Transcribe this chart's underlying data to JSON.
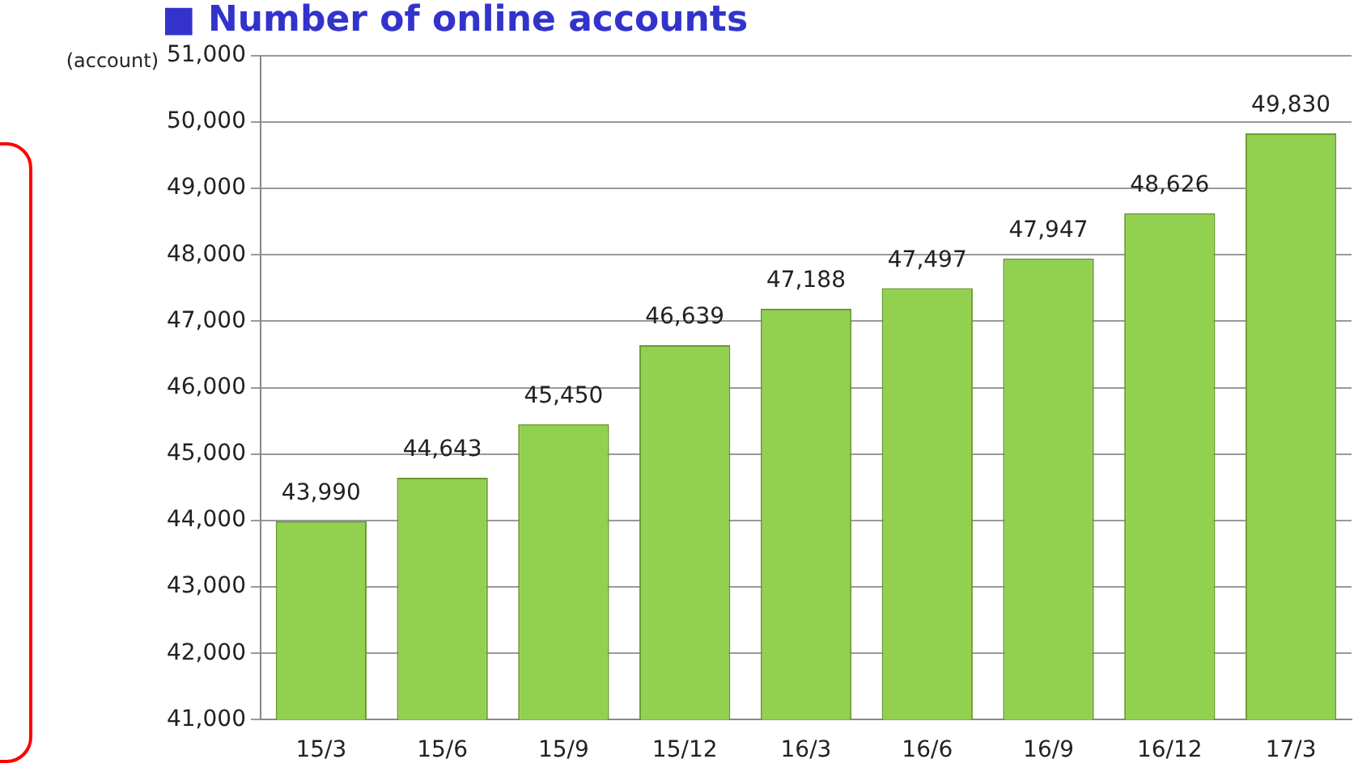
{
  "chart_data": {
    "type": "bar",
    "title": "■ Number of online accounts",
    "ylabel": "(account)",
    "categories": [
      "15/3",
      "15/6",
      "15/9",
      "15/12",
      "16/3",
      "16/6",
      "16/9",
      "16/12",
      "17/3"
    ],
    "values": [
      43990,
      44643,
      45450,
      46639,
      47188,
      47497,
      47947,
      48626,
      49830
    ],
    "color": "#92d050",
    "ylim": [
      41000,
      51000
    ],
    "yticks": [
      {
        "value": 41000,
        "label": "41,000"
      },
      {
        "value": 42000,
        "label": "42,000"
      },
      {
        "value": 43000,
        "label": "43,000"
      },
      {
        "value": 44000,
        "label": "44,000"
      },
      {
        "value": 45000,
        "label": "45,000"
      },
      {
        "value": 46000,
        "label": "46,000"
      },
      {
        "value": 47000,
        "label": "47,000"
      },
      {
        "value": 48000,
        "label": "48,000"
      },
      {
        "value": 49000,
        "label": "49,000"
      },
      {
        "value": 50000,
        "label": "50,000"
      },
      {
        "value": 51000,
        "label": "51,000"
      }
    ],
    "value_labels": [
      "43,990",
      "44,643",
      "45,450",
      "46,639",
      "47,188",
      "47,497",
      "47,947",
      "48,626",
      "49,830"
    ],
    "grid": "y",
    "legend": false
  }
}
